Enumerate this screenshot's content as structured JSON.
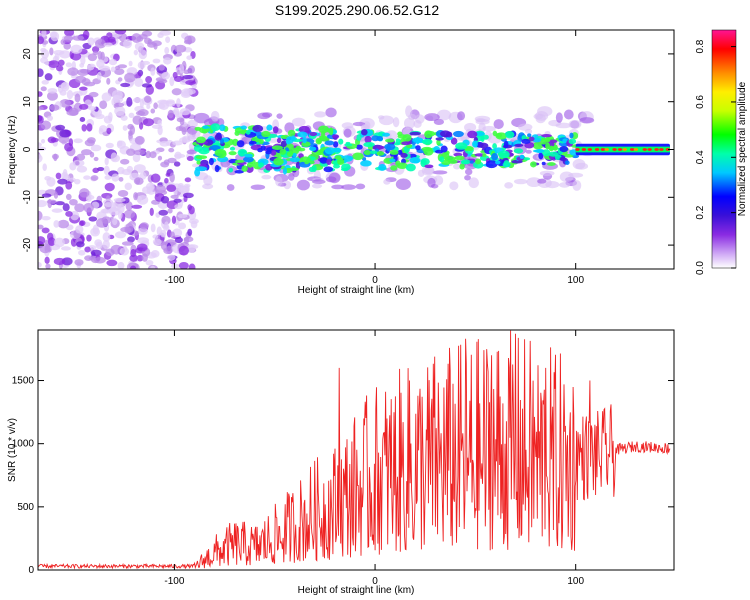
{
  "title": "S199.2025.290.06.52.G12",
  "chart_data": [
    {
      "type": "heatmap",
      "title": "S199.2025.290.06.52.G12",
      "xlabel": "Height of straight line (km)",
      "ylabel": "Frequency (Hz)",
      "xlim": [
        -168,
        149
      ],
      "ylim": [
        -25,
        25
      ],
      "xticks": [
        -100,
        0,
        100
      ],
      "yticks": [
        -20,
        -10,
        0,
        10,
        20
      ],
      "colorbar": {
        "label": "Normalized spectral amplitude",
        "range": [
          0,
          0.86
        ],
        "ticks": [
          0.0,
          0.2,
          0.4,
          0.6,
          0.8
        ],
        "colormap": [
          "#ffffff",
          "#cfa8f5",
          "#8a2be2",
          "#3a10d8",
          "#0000ff",
          "#00c8ff",
          "#00ffaa",
          "#00ff00",
          "#c8ff00",
          "#ffee00",
          "#ff8c00",
          "#ff0000",
          "#ff1493"
        ]
      },
      "regions": [
        {
          "x_range": [
            -168,
            -90
          ],
          "freq_range": [
            -25,
            25
          ],
          "amplitude": 0.05,
          "description": "broadband noise"
        },
        {
          "x_range": [
            -90,
            100
          ],
          "freq_center": 0,
          "freq_halfwidth": 5,
          "amplitude": 0.3
        },
        {
          "x_range": [
            100,
            147
          ],
          "freq_center": 0,
          "freq_halfwidth": 1,
          "amplitude": 0.85
        }
      ]
    },
    {
      "type": "line",
      "xlabel": "Height of straight line (km)",
      "ylabel": "SNR (10 * v/v)",
      "xlim": [
        -168,
        149
      ],
      "ylim": [
        0,
        1900
      ],
      "xticks": [
        -100,
        0,
        100
      ],
      "yticks": [
        0,
        500,
        1000,
        1500
      ],
      "series": [
        {
          "name": "SNR",
          "color": "#ee2222",
          "x": [
            -168,
            -140,
            -110,
            -90,
            -80,
            -70,
            -60,
            -50,
            -40,
            -30,
            -20,
            -10,
            0,
            10,
            20,
            30,
            40,
            50,
            60,
            70,
            80,
            90,
            100,
            110,
            120,
            130,
            149
          ],
          "y": [
            30,
            30,
            30,
            30,
            150,
            220,
            200,
            280,
            380,
            480,
            550,
            680,
            800,
            850,
            900,
            950,
            980,
            1000,
            1050,
            1020,
            1000,
            950,
            900,
            900,
            950,
            980,
            960
          ],
          "peaks": [
            [
              -18,
              1600
            ],
            [
              17,
              1500
            ],
            [
              45,
              1830
            ],
            [
              58,
              1700
            ],
            [
              70,
              1870
            ],
            [
              85,
              1600
            ],
            [
              107,
              1500
            ]
          ]
        }
      ]
    }
  ]
}
